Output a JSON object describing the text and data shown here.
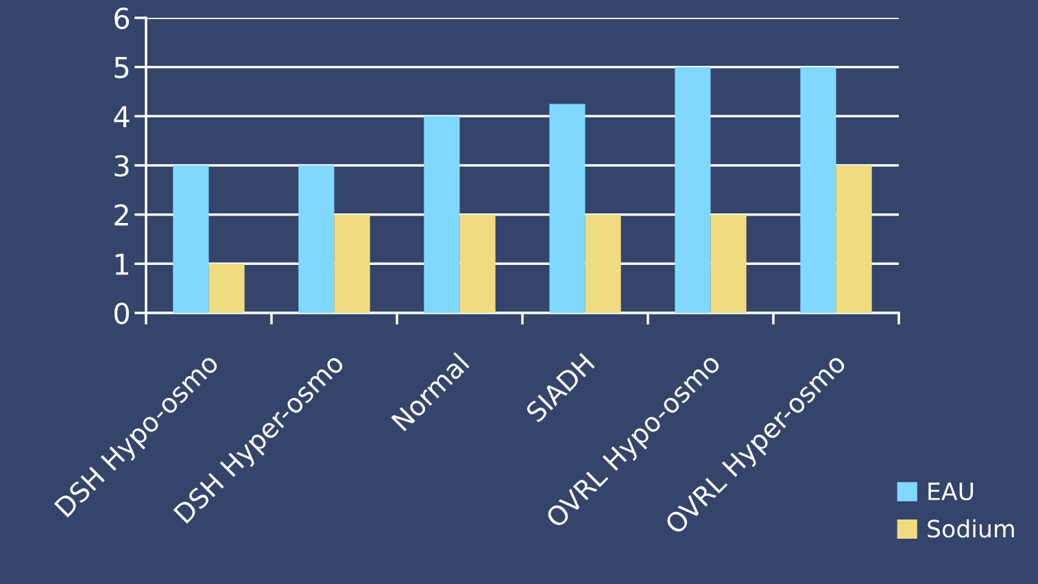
{
  "chart_data": {
    "type": "bar",
    "categories": [
      "DSH Hypo-osmo",
      "DSH Hyper-osmo",
      "Normal",
      "SIADH",
      "OVRL Hypo-osmo",
      "OVRL Hyper-osmo"
    ],
    "series": [
      {
        "name": "EAU",
        "color": "#80d8ff",
        "values": [
          3,
          3,
          4,
          4.25,
          5,
          5
        ]
      },
      {
        "name": "Sodium",
        "color": "#f0dc80",
        "values": [
          1,
          2,
          2,
          2,
          2,
          3
        ]
      }
    ],
    "ylim": [
      0,
      6
    ],
    "yticks": [
      0,
      1,
      2,
      3,
      4,
      5,
      6
    ],
    "grid": "y",
    "legend": "bottom right"
  }
}
